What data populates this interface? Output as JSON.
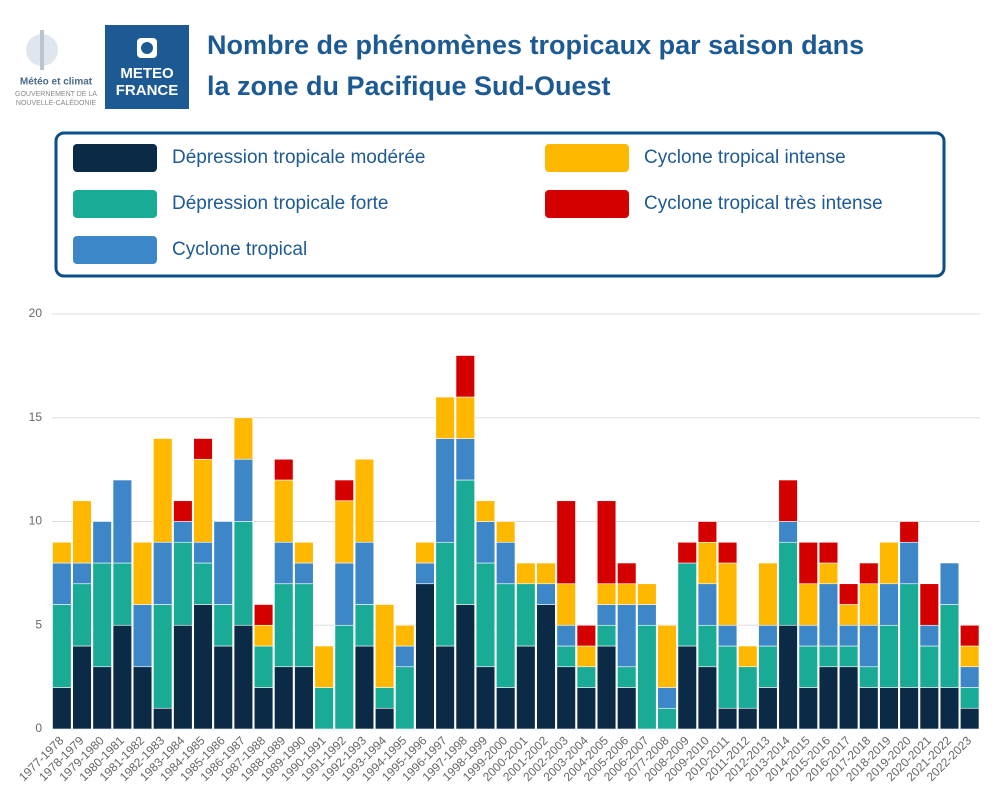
{
  "header": {
    "logo_left": [
      "Météo et climat",
      "GOUVERNEMENT DE LA",
      "NOUVELLE-CALÉDONIE"
    ],
    "logo_right": [
      "METEO",
      "FRANCE"
    ]
  },
  "chart_data": {
    "type": "stacked_bar",
    "title": [
      "Nombre de phénomènes tropicaux par saison dans",
      "la zone du Pacifique Sud-Ouest"
    ],
    "categories": [
      "1977-1978",
      "1978-1979",
      "1979-1980",
      "1980-1981",
      "1981-1982",
      "1982-1983",
      "1983-1984",
      "1984-1985",
      "1985-1986",
      "1986-1987",
      "1987-1988",
      "1988-1989",
      "1989-1990",
      "1990-1991",
      "1991-1992",
      "1992-1993",
      "1993-1994",
      "1994-1995",
      "1995-1996",
      "1996-1997",
      "1997-1998",
      "1998-1999",
      "1999-2000",
      "2000-2001",
      "2001-2002",
      "2002-2003",
      "2003-2004",
      "2004-2005",
      "2005-2006",
      "2006-2007",
      "2077-2008",
      "2008-2009",
      "2009-2010",
      "2010-2011",
      "2011-2012",
      "2012-2013",
      "2013-2014",
      "2014-2015",
      "2015-2016",
      "2016-2017",
      "2017-2018",
      "2018-2019",
      "2019-2020",
      "2020-2021",
      "2021-2022",
      "2022-2023"
    ],
    "series": [
      {
        "name": "Dépression tropicale modérée",
        "color": "#0b2a45",
        "values": [
          2,
          4,
          3,
          5,
          3,
          1,
          5,
          6,
          4,
          5,
          2,
          3,
          3,
          0,
          0,
          4,
          1,
          0,
          7,
          4,
          6,
          3,
          2,
          4,
          6,
          3,
          2,
          4,
          2,
          0,
          0,
          4,
          3,
          1,
          1,
          2,
          5,
          2,
          3,
          3,
          2,
          2,
          2,
          2,
          2,
          1
        ]
      },
      {
        "name": "Dépression tropicale forte",
        "color": "#1aab97",
        "values": [
          4,
          3,
          5,
          3,
          0,
          5,
          4,
          2,
          2,
          5,
          2,
          4,
          4,
          2,
          5,
          2,
          1,
          3,
          0,
          5,
          6,
          5,
          5,
          3,
          0,
          1,
          1,
          1,
          1,
          5,
          1,
          4,
          2,
          3,
          2,
          2,
          4,
          2,
          1,
          1,
          1,
          3,
          5,
          2,
          4,
          1
        ]
      },
      {
        "name": "Cyclone tropical",
        "color": "#3d86c8",
        "values": [
          2,
          1,
          2,
          4,
          3,
          3,
          1,
          1,
          4,
          3,
          0,
          2,
          1,
          0,
          3,
          3,
          0,
          1,
          1,
          5,
          2,
          2,
          2,
          0,
          1,
          1,
          0,
          1,
          3,
          1,
          1,
          0,
          2,
          1,
          0,
          1,
          1,
          1,
          3,
          1,
          2,
          2,
          2,
          1,
          2,
          1
        ]
      },
      {
        "name": "Cyclone tropical intense",
        "color": "#ffb800",
        "values": [
          1,
          3,
          0,
          0,
          3,
          5,
          0,
          4,
          0,
          2,
          1,
          3,
          1,
          2,
          3,
          4,
          4,
          1,
          1,
          2,
          2,
          1,
          1,
          1,
          1,
          2,
          1,
          1,
          1,
          1,
          3,
          0,
          2,
          3,
          1,
          3,
          0,
          2,
          1,
          1,
          2,
          2,
          0,
          0,
          0,
          1
        ]
      },
      {
        "name": "Cyclone tropical très intense",
        "color": "#d40000",
        "values": [
          0,
          0,
          0,
          0,
          0,
          0,
          1,
          1,
          0,
          0,
          1,
          1,
          0,
          0,
          1,
          0,
          0,
          0,
          0,
          0,
          2,
          0,
          0,
          0,
          0,
          4,
          1,
          4,
          1,
          0,
          0,
          1,
          1,
          1,
          0,
          0,
          2,
          2,
          1,
          1,
          1,
          0,
          1,
          2,
          0,
          1
        ]
      }
    ],
    "ylim": [
      0,
      20
    ],
    "yticks": [
      0,
      5,
      10,
      15,
      20
    ],
    "grid": true
  }
}
